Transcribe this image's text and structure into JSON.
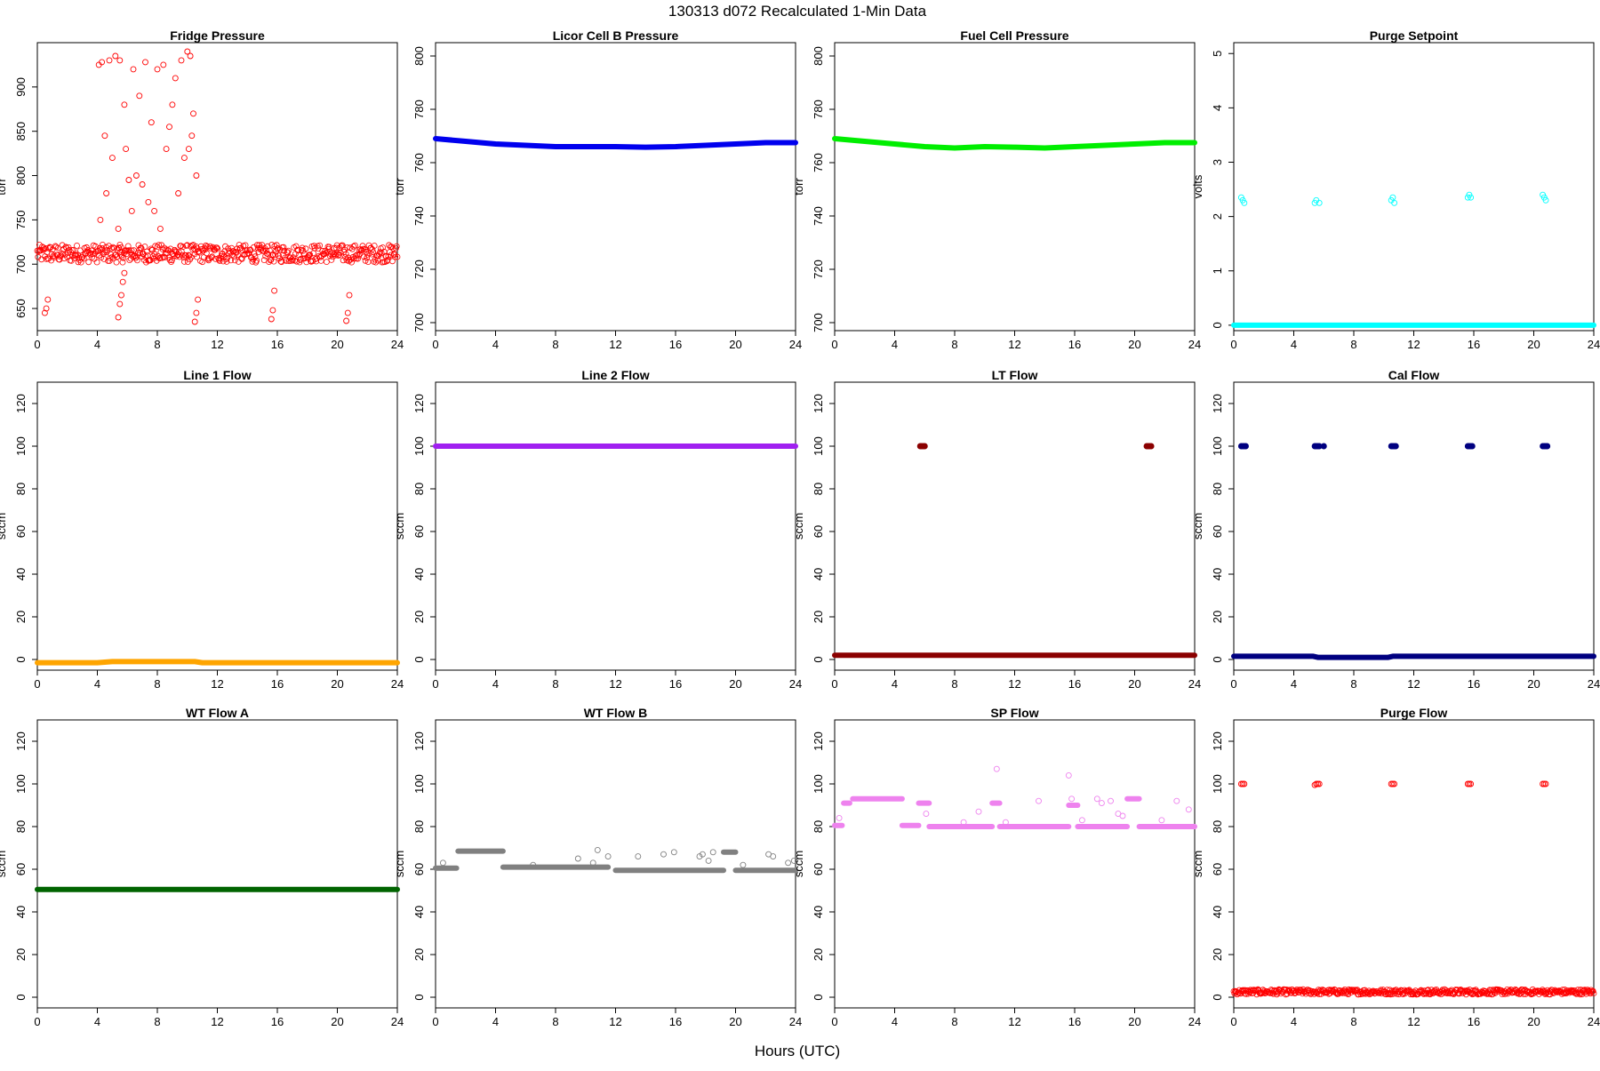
{
  "figure": {
    "title": "130313    d072    Recalculated 1-Min Data",
    "xlabel": "Hours (UTC)"
  },
  "chart_data": [
    {
      "type": "scatter",
      "title": "Fridge Pressure",
      "ylabel": "torr",
      "xlim": [
        0,
        24
      ],
      "ylim": [
        625,
        950
      ],
      "xticks": [
        0,
        4,
        8,
        12,
        16,
        20,
        24
      ],
      "yticks": [
        650,
        700,
        750,
        800,
        850,
        900
      ],
      "color": "#ff0000",
      "marker": "open",
      "series": [
        {
          "kind": "band",
          "x": [
            0,
            24
          ],
          "center": 712,
          "spread": 10
        },
        {
          "kind": "points",
          "x": [
            0.5,
            0.6,
            0.7,
            4.1,
            4.3,
            4.5,
            4.8,
            5.2,
            5.5,
            5.8,
            6.1,
            6.4,
            6.8,
            7.2,
            7.6,
            8.0,
            8.4,
            8.8,
            9.2,
            9.6,
            10.0,
            10.2,
            10.4,
            10.6
          ],
          "y": [
            645,
            650,
            660,
            925,
            928,
            845,
            930,
            935,
            930,
            880,
            795,
            920,
            890,
            928,
            860,
            920,
            925,
            855,
            910,
            930,
            940,
            935,
            870,
            800
          ]
        },
        {
          "kind": "points",
          "x": [
            4.2,
            4.6,
            5.0,
            5.4,
            5.6,
            5.9,
            6.3,
            6.6,
            7.0,
            7.4,
            7.8,
            8.2,
            8.6,
            9.0,
            9.4,
            9.8,
            10.1,
            10.3
          ],
          "y": [
            750,
            780,
            820,
            740,
            710,
            830,
            760,
            800,
            790,
            770,
            760,
            740,
            830,
            880,
            780,
            820,
            830,
            845
          ]
        },
        {
          "kind": "points",
          "x": [
            5.4,
            5.5,
            5.6,
            5.7,
            5.8,
            10.5,
            10.6,
            10.7,
            15.6,
            15.7,
            15.8,
            20.6,
            20.7,
            20.8
          ],
          "y": [
            640,
            655,
            665,
            680,
            690,
            635,
            645,
            660,
            638,
            648,
            670,
            636,
            645,
            665
          ]
        }
      ]
    },
    {
      "type": "scatter",
      "title": "Licor Cell B Pressure",
      "ylabel": "torr",
      "xlim": [
        0,
        24
      ],
      "ylim": [
        697,
        805
      ],
      "xticks": [
        0,
        4,
        8,
        12,
        16,
        20,
        24
      ],
      "yticks": [
        700,
        720,
        740,
        760,
        780,
        800
      ],
      "color": "#0000ee",
      "marker": "filled",
      "series": [
        {
          "kind": "line",
          "x": [
            0,
            2,
            4,
            6,
            8,
            10,
            12,
            14,
            16,
            18,
            20,
            22,
            24
          ],
          "y": [
            769,
            768,
            767,
            766.5,
            766,
            766,
            766,
            765.8,
            766,
            766.5,
            767,
            767.5,
            767.5
          ]
        }
      ]
    },
    {
      "type": "scatter",
      "title": "Fuel Cell Pressure",
      "ylabel": "torr",
      "xlim": [
        0,
        24
      ],
      "ylim": [
        697,
        805
      ],
      "xticks": [
        0,
        4,
        8,
        12,
        16,
        20,
        24
      ],
      "yticks": [
        700,
        720,
        740,
        760,
        780,
        800
      ],
      "color": "#00ee00",
      "marker": "filled",
      "series": [
        {
          "kind": "line",
          "x": [
            0,
            2,
            4,
            6,
            8,
            10,
            12,
            14,
            16,
            18,
            20,
            22,
            24
          ],
          "y": [
            769,
            768,
            767,
            766,
            765.5,
            766,
            765.8,
            765.5,
            766,
            766.5,
            767,
            767.5,
            767.5
          ]
        }
      ]
    },
    {
      "type": "scatter",
      "title": "Purge Setpoint",
      "ylabel": "volts",
      "xlim": [
        0,
        24
      ],
      "ylim": [
        -0.1,
        5.2
      ],
      "xticks": [
        0,
        4,
        8,
        12,
        16,
        20,
        24
      ],
      "yticks": [
        0,
        1,
        2,
        3,
        4,
        5
      ],
      "color": "#00ffff",
      "marker": "open",
      "series": [
        {
          "kind": "line",
          "x": [
            0,
            24
          ],
          "y": [
            0,
            0
          ]
        },
        {
          "kind": "points",
          "x": [
            0.5,
            0.6,
            0.7,
            5.4,
            5.5,
            5.7,
            10.5,
            10.6,
            10.7,
            15.6,
            15.7,
            15.8,
            20.6,
            20.7,
            20.8
          ],
          "y": [
            2.35,
            2.3,
            2.25,
            2.25,
            2.3,
            2.25,
            2.3,
            2.35,
            2.25,
            2.35,
            2.4,
            2.35,
            2.4,
            2.35,
            2.3
          ]
        }
      ]
    },
    {
      "type": "scatter",
      "title": "Line 1 Flow",
      "ylabel": "sccm",
      "xlim": [
        0,
        24
      ],
      "ylim": [
        -5,
        130
      ],
      "xticks": [
        0,
        4,
        8,
        12,
        16,
        20,
        24
      ],
      "yticks": [
        0,
        20,
        40,
        60,
        80,
        100,
        120
      ],
      "color": "#ffa500",
      "marker": "filled",
      "series": [
        {
          "kind": "line",
          "x": [
            0,
            4,
            5,
            10.5,
            11,
            24
          ],
          "y": [
            -1.5,
            -1.5,
            -1,
            -1,
            -1.5,
            -1.5
          ]
        }
      ]
    },
    {
      "type": "scatter",
      "title": "Line 2 Flow",
      "ylabel": "sccm",
      "xlim": [
        0,
        24
      ],
      "ylim": [
        -5,
        130
      ],
      "xticks": [
        0,
        4,
        8,
        12,
        16,
        20,
        24
      ],
      "yticks": [
        0,
        20,
        40,
        60,
        80,
        100,
        120
      ],
      "color": "#a020f0",
      "marker": "filled",
      "series": [
        {
          "kind": "line",
          "x": [
            0,
            24
          ],
          "y": [
            100,
            100
          ]
        }
      ]
    },
    {
      "type": "scatter",
      "title": "LT Flow",
      "ylabel": "sccm",
      "xlim": [
        0,
        24
      ],
      "ylim": [
        -5,
        130
      ],
      "xticks": [
        0,
        4,
        8,
        12,
        16,
        20,
        24
      ],
      "yticks": [
        0,
        20,
        40,
        60,
        80,
        100,
        120
      ],
      "color": "#8b0000",
      "marker": "filled",
      "series": [
        {
          "kind": "line",
          "x": [
            0,
            24
          ],
          "y": [
            2,
            2
          ]
        },
        {
          "kind": "points",
          "x": [
            5.7,
            5.8,
            5.9,
            6.0,
            20.8,
            20.9,
            21.0,
            21.1
          ],
          "y": [
            100,
            100,
            100,
            100,
            100,
            100,
            100,
            100
          ]
        }
      ]
    },
    {
      "type": "scatter",
      "title": "Cal Flow",
      "ylabel": "sccm",
      "xlim": [
        0,
        24
      ],
      "ylim": [
        -5,
        130
      ],
      "xticks": [
        0,
        4,
        8,
        12,
        16,
        20,
        24
      ],
      "yticks": [
        0,
        20,
        40,
        60,
        80,
        100,
        120
      ],
      "color": "#000080",
      "marker": "filled",
      "series": [
        {
          "kind": "line",
          "x": [
            0,
            5.3,
            5.6,
            10.3,
            10.6,
            24
          ],
          "y": [
            1.5,
            1.5,
            1,
            1,
            1.5,
            1.5
          ]
        },
        {
          "kind": "points",
          "x": [
            0.5,
            0.6,
            0.7,
            0.8,
            5.4,
            5.5,
            5.6,
            5.7,
            6.0,
            10.5,
            10.6,
            10.7,
            10.8,
            15.6,
            15.7,
            15.8,
            15.9,
            20.6,
            20.7,
            20.8,
            20.9
          ],
          "y": [
            100,
            100,
            100,
            100,
            100,
            100,
            100,
            100,
            100,
            100,
            100,
            100,
            100,
            100,
            100,
            100,
            100,
            100,
            100,
            100,
            100
          ]
        }
      ]
    },
    {
      "type": "scatter",
      "title": "WT Flow A",
      "ylabel": "sccm",
      "xlim": [
        0,
        24
      ],
      "ylim": [
        -5,
        130
      ],
      "xticks": [
        0,
        4,
        8,
        12,
        16,
        20,
        24
      ],
      "yticks": [
        0,
        20,
        40,
        60,
        80,
        100,
        120
      ],
      "color": "#006400",
      "marker": "filled",
      "series": [
        {
          "kind": "line",
          "x": [
            0,
            24
          ],
          "y": [
            50.5,
            50.5
          ]
        }
      ]
    },
    {
      "type": "scatter",
      "title": "WT Flow B",
      "ylabel": "sccm",
      "xlim": [
        0,
        24
      ],
      "ylim": [
        -5,
        130
      ],
      "xticks": [
        0,
        4,
        8,
        12,
        16,
        20,
        24
      ],
      "yticks": [
        0,
        20,
        40,
        60,
        80,
        100,
        120
      ],
      "color": "#808080",
      "marker": "filled",
      "series": [
        {
          "kind": "line",
          "x": [
            0,
            1.4
          ],
          "y": [
            60.5,
            60.5
          ]
        },
        {
          "kind": "line",
          "x": [
            1.5,
            4.5
          ],
          "y": [
            68.5,
            68.5
          ]
        },
        {
          "kind": "line",
          "x": [
            4.5,
            11.5
          ],
          "y": [
            61,
            61
          ]
        },
        {
          "kind": "line",
          "x": [
            12,
            19.2
          ],
          "y": [
            59.5,
            59.5
          ]
        },
        {
          "kind": "line",
          "x": [
            19.2,
            20
          ],
          "y": [
            68,
            68
          ]
        },
        {
          "kind": "line",
          "x": [
            20,
            24
          ],
          "y": [
            59.5,
            59.5
          ]
        },
        {
          "kind": "points",
          "x": [
            0.5,
            6.5,
            9.5,
            10.5,
            10.8,
            11.5,
            13.5,
            15.2,
            15.9,
            17.6,
            17.8,
            18.2,
            18.5,
            20.5,
            22.2,
            22.5,
            23.5,
            23.9
          ],
          "y": [
            63,
            62,
            65,
            63,
            69,
            66,
            66,
            67,
            68,
            66,
            67,
            64,
            68,
            62,
            67,
            66,
            63,
            64
          ]
        }
      ]
    },
    {
      "type": "scatter",
      "title": "SP Flow",
      "ylabel": "sccm",
      "xlim": [
        0,
        24
      ],
      "ylim": [
        -5,
        130
      ],
      "xticks": [
        0,
        4,
        8,
        12,
        16,
        20,
        24
      ],
      "yticks": [
        0,
        20,
        40,
        60,
        80,
        100,
        120
      ],
      "color": "#ee82ee",
      "marker": "filled",
      "series": [
        {
          "kind": "line",
          "x": [
            0,
            0.5
          ],
          "y": [
            80.5,
            80.5
          ]
        },
        {
          "kind": "line",
          "x": [
            0.6,
            1.0
          ],
          "y": [
            91,
            91
          ]
        },
        {
          "kind": "line",
          "x": [
            1.2,
            4.5
          ],
          "y": [
            93,
            93
          ]
        },
        {
          "kind": "line",
          "x": [
            4.5,
            5.6
          ],
          "y": [
            80.5,
            80.5
          ]
        },
        {
          "kind": "line",
          "x": [
            5.6,
            6.3
          ],
          "y": [
            91,
            91
          ]
        },
        {
          "kind": "line",
          "x": [
            6.3,
            10.5
          ],
          "y": [
            80,
            80
          ]
        },
        {
          "kind": "line",
          "x": [
            10.5,
            11.0
          ],
          "y": [
            91,
            91
          ]
        },
        {
          "kind": "line",
          "x": [
            11.0,
            15.6
          ],
          "y": [
            80,
            80
          ]
        },
        {
          "kind": "line",
          "x": [
            15.6,
            16.2
          ],
          "y": [
            90,
            90
          ]
        },
        {
          "kind": "line",
          "x": [
            16.2,
            19.5
          ],
          "y": [
            80,
            80
          ]
        },
        {
          "kind": "line",
          "x": [
            19.5,
            20.3
          ],
          "y": [
            93,
            93
          ]
        },
        {
          "kind": "line",
          "x": [
            20.3,
            24
          ],
          "y": [
            80,
            80
          ]
        },
        {
          "kind": "points",
          "x": [
            0.3,
            6.1,
            8.6,
            9.6,
            10.8,
            11.4,
            13.6,
            15.6,
            15.8,
            16.5,
            17.5,
            17.8,
            18.4,
            18.9,
            19.2,
            21.8,
            22.8,
            23.6
          ],
          "y": [
            84,
            86,
            82,
            87,
            107,
            82,
            92,
            104,
            93,
            83,
            93,
            91,
            92,
            86,
            85,
            83,
            92,
            88
          ]
        }
      ]
    },
    {
      "type": "scatter",
      "title": "Purge Flow",
      "ylabel": "sccm",
      "xlim": [
        0,
        24
      ],
      "ylim": [
        -5,
        130
      ],
      "xticks": [
        0,
        4,
        8,
        12,
        16,
        20,
        24
      ],
      "yticks": [
        0,
        20,
        40,
        60,
        80,
        100,
        120
      ],
      "color": "#ff0000",
      "marker": "open",
      "series": [
        {
          "kind": "band",
          "x": [
            0,
            24
          ],
          "center": 2.5,
          "spread": 1.2
        },
        {
          "kind": "points",
          "x": [
            0.5,
            0.6,
            0.7,
            5.4,
            5.5,
            5.6,
            5.7,
            10.5,
            10.6,
            10.7,
            15.6,
            15.7,
            15.8,
            20.6,
            20.7,
            20.8
          ],
          "y": [
            100,
            100,
            100,
            99.5,
            100,
            100,
            100,
            100,
            100,
            100,
            100,
            100,
            100,
            100,
            100,
            100
          ]
        }
      ]
    }
  ]
}
